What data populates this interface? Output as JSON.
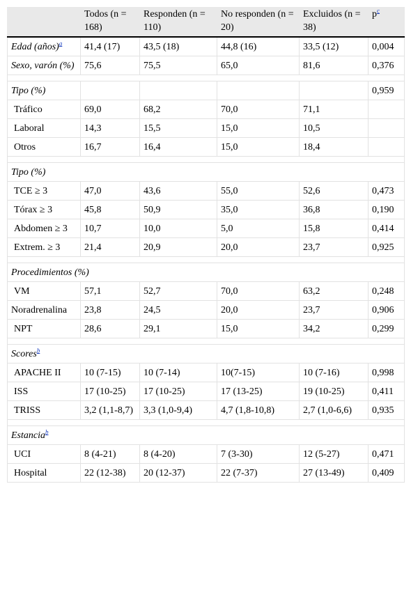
{
  "header": [
    "Todos (n = 168)",
    "Responden (n = 110)",
    "No responden (n = 20)",
    "Excluidos (n = 38)",
    "p"
  ],
  "header_p_note": "c",
  "rows": [
    {
      "kind": "hdr-data",
      "label": "Edad (años)",
      "note": "a",
      "cells": [
        "41,4 (17)",
        "43,5 (18)",
        "44,8 (16)",
        "33,5 (12)",
        "0,004"
      ]
    },
    {
      "kind": "hdr-data",
      "label": "Sexo, varón (%)",
      "note": "",
      "cells": [
        "75,6",
        "75,5",
        "65,0",
        "81,6",
        "0,376"
      ]
    },
    {
      "kind": "gap"
    },
    {
      "kind": "hdr-data",
      "label": "Tipo (%)",
      "note": "",
      "cells": [
        "",
        "",
        "",
        "",
        "0,959"
      ]
    },
    {
      "kind": "sub",
      "label": "Tráfico",
      "cells": [
        "69,0",
        "68,2",
        "70,0",
        "71,1",
        ""
      ]
    },
    {
      "kind": "sub",
      "label": "Laboral",
      "cells": [
        "14,3",
        "15,5",
        "15,0",
        "10,5",
        ""
      ]
    },
    {
      "kind": "sub",
      "label": "Otros",
      "cells": [
        "16,7",
        "16,4",
        "15,0",
        "18,4",
        ""
      ]
    },
    {
      "kind": "gap"
    },
    {
      "kind": "hdr-span",
      "label": "Tipo (%)",
      "note": ""
    },
    {
      "kind": "sub",
      "label": "TCE ≥ 3",
      "cells": [
        "47,0",
        "43,6",
        "55,0",
        "52,6",
        "0,473"
      ]
    },
    {
      "kind": "sub",
      "label": "Tórax ≥ 3",
      "cells": [
        "45,8",
        "50,9",
        "35,0",
        "36,8",
        "0,190"
      ]
    },
    {
      "kind": "sub",
      "label": "Abdomen ≥ 3",
      "cells": [
        "10,7",
        "10,0",
        "5,0",
        "15,8",
        "0,414"
      ]
    },
    {
      "kind": "sub",
      "label": "Extrem. ≥ 3",
      "cells": [
        "21,4",
        "20,9",
        "20,0",
        "23,7",
        "0,925"
      ]
    },
    {
      "kind": "gap"
    },
    {
      "kind": "hdr-span",
      "label": "Procedimientos (%)",
      "note": ""
    },
    {
      "kind": "sub",
      "label": "VM",
      "cells": [
        "57,1",
        "52,7",
        "70,0",
        "63,2",
        "0,248"
      ]
    },
    {
      "kind": "plain",
      "label": "Noradrenalina",
      "cells": [
        "23,8",
        "24,5",
        "20,0",
        "23,7",
        "0,906"
      ]
    },
    {
      "kind": "sub",
      "label": "NPT",
      "cells": [
        "28,6",
        "29,1",
        "15,0",
        "34,2",
        "0,299"
      ]
    },
    {
      "kind": "gap"
    },
    {
      "kind": "hdr-span",
      "label": "Scores",
      "note": "b"
    },
    {
      "kind": "sub",
      "label": "APACHE II",
      "cells": [
        "10 (7-15)",
        "10 (7-14)",
        "10(7-15)",
        "10 (7-16)",
        "0,998"
      ]
    },
    {
      "kind": "sub",
      "label": "ISS",
      "cells": [
        "17 (10-25)",
        "17 (10-25)",
        "17 (13-25)",
        "19 (10-25)",
        "0,411"
      ]
    },
    {
      "kind": "sub",
      "label": "TRISS",
      "cells": [
        "3,2 (1,1-8,7)",
        "3,3 (1,0-9,4)",
        "4,7 (1,8-10,8)",
        "2,7 (1,0-6,6)",
        "0,935"
      ]
    },
    {
      "kind": "gap"
    },
    {
      "kind": "hdr-span",
      "label": "Estancia",
      "note": "b"
    },
    {
      "kind": "sub",
      "label": "UCI",
      "cells": [
        "8 (4-21)",
        "8 (4-20)",
        "7 (3-30)",
        "12 (5-27)",
        "0,471"
      ]
    },
    {
      "kind": "sub",
      "label": "Hospital",
      "cells": [
        "22 (12-38)",
        "20 (12-37)",
        "22 (7-37)",
        "27 (13-49)",
        "0,409"
      ]
    }
  ]
}
